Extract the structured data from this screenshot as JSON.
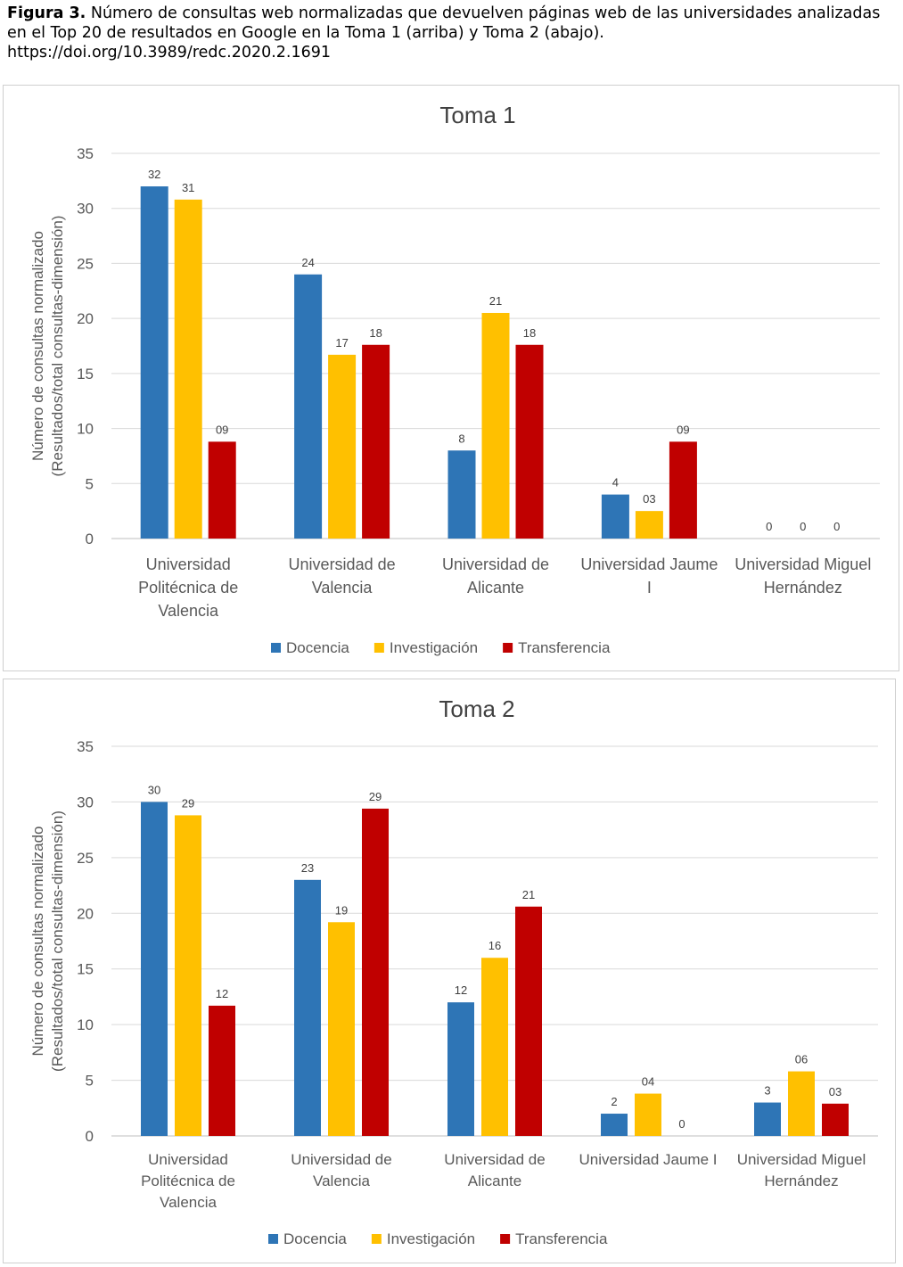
{
  "caption": {
    "label": "Figura 3.",
    "text": "Número de consultas web normalizadas que devuelven páginas web de las universidades analizadas en el Top 20 de resultados en Google en la Toma 1 (arriba) y Toma 2 (abajo).",
    "doi": "https://doi.org/10.3989/redc.2020.2.1691"
  },
  "colors": {
    "Docencia": "#2e75b6",
    "Investigación": "#ffc000",
    "Transferencia": "#c00000"
  },
  "chart_data": [
    {
      "type": "bar",
      "title": "Toma 1",
      "ylabel": [
        "Número de consultas normalizado",
        "(Resultados/total consultas-dimensión)"
      ],
      "ylim": [
        0,
        35
      ],
      "yticks": [
        "0",
        "5",
        "10",
        "15",
        "20",
        "25",
        "30",
        "35"
      ],
      "grid": true,
      "legend_position": "bottom",
      "categories": [
        [
          "Universidad",
          "Politécnica de",
          "Valencia"
        ],
        [
          "Universidad de",
          "Valencia"
        ],
        [
          "Universidad de",
          "Alicante"
        ],
        [
          "Universidad Jaume",
          "I"
        ],
        [
          "Universidad Miguel",
          "Hernández"
        ]
      ],
      "series": [
        {
          "name": "Docencia",
          "values": [
            32,
            24,
            8,
            4,
            0
          ],
          "labels": [
            "32",
            "24",
            "8",
            "4",
            "0"
          ]
        },
        {
          "name": "Investigación",
          "values": [
            30.8,
            16.7,
            20.5,
            2.5,
            0
          ],
          "labels": [
            "31",
            "17",
            "21",
            "03",
            "0"
          ]
        },
        {
          "name": "Transferencia",
          "values": [
            8.8,
            17.6,
            17.6,
            8.8,
            0
          ],
          "labels": [
            "09",
            "18",
            "18",
            "09",
            "0"
          ]
        }
      ]
    },
    {
      "type": "bar",
      "title": "Toma 2",
      "ylabel": [
        "Número de consultas  normalizado",
        "(Resultados/total consultas-dimensión)"
      ],
      "ylim": [
        0,
        35
      ],
      "yticks": [
        "0",
        "5",
        "10",
        "15",
        "20",
        "25",
        "30",
        "35"
      ],
      "grid": true,
      "legend_position": "bottom",
      "categories": [
        [
          "Universidad",
          "Politécnica de",
          "Valencia"
        ],
        [
          "Universidad de",
          "Valencia"
        ],
        [
          "Universidad de",
          "Alicante"
        ],
        [
          "Universidad Jaume I"
        ],
        [
          "Universidad Miguel",
          "Hernández"
        ]
      ],
      "series": [
        {
          "name": "Docencia",
          "values": [
            30,
            23,
            12,
            2,
            3
          ],
          "labels": [
            "30",
            "23",
            "12",
            "2",
            "3"
          ]
        },
        {
          "name": "Investigación",
          "values": [
            28.8,
            19.2,
            16,
            3.8,
            5.8
          ],
          "labels": [
            "29",
            "19",
            "16",
            "04",
            "06"
          ]
        },
        {
          "name": "Transferencia",
          "values": [
            11.7,
            29.4,
            20.6,
            0,
            2.9
          ],
          "labels": [
            "12",
            "29",
            "21",
            "0",
            "03"
          ]
        }
      ]
    }
  ]
}
